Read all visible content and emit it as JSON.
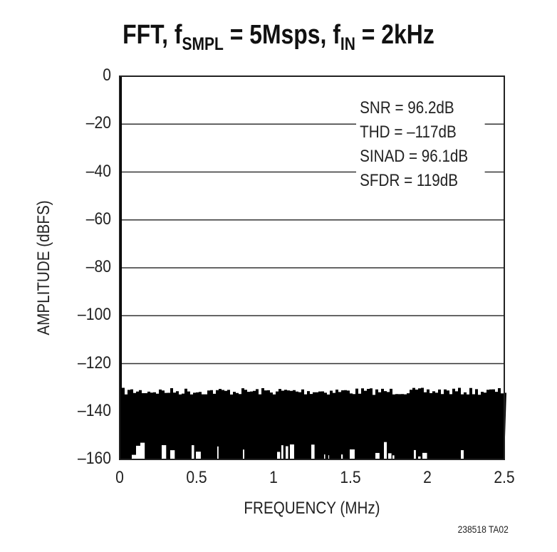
{
  "chart_data": {
    "type": "line",
    "title": "FFT, fSMPL = 5Msps, fIN = 2kHz",
    "title_parts": {
      "main": "FFT, f",
      "sub1": "SMPL",
      "mid": " = 5Msps, f",
      "sub2": "IN",
      "end": " = 2kHz"
    },
    "xlabel": "FREQUENCY (MHz)",
    "ylabel": "AMPLITUDE (dBFS)",
    "xlim": [
      0,
      2.5
    ],
    "ylim": [
      -160,
      0
    ],
    "x_ticks": [
      "0",
      "0.5",
      "1",
      "1.5",
      "2",
      "2.5"
    ],
    "y_ticks": [
      "0",
      "–20",
      "–40",
      "–60",
      "–80",
      "–100",
      "–120",
      "–140",
      "–160"
    ],
    "grid": "horizontal",
    "series": [
      {
        "name": "FFT spectrum",
        "description": "Fundamental at 2kHz reaching 0 dBFS at left edge; noise floor spanning roughly -160 to -130 dBFS across 0–2.5 MHz",
        "fundamental": {
          "x": 0.002,
          "y": 0
        },
        "noise_floor_top": -131,
        "noise_floor_bottom": -160
      }
    ],
    "annotations": [
      "SNR = 96.2dB",
      "THD = –117dB",
      "SINAD = 96.1dB",
      "SFDR = 119dB"
    ],
    "footnote": "238518 TA02"
  }
}
